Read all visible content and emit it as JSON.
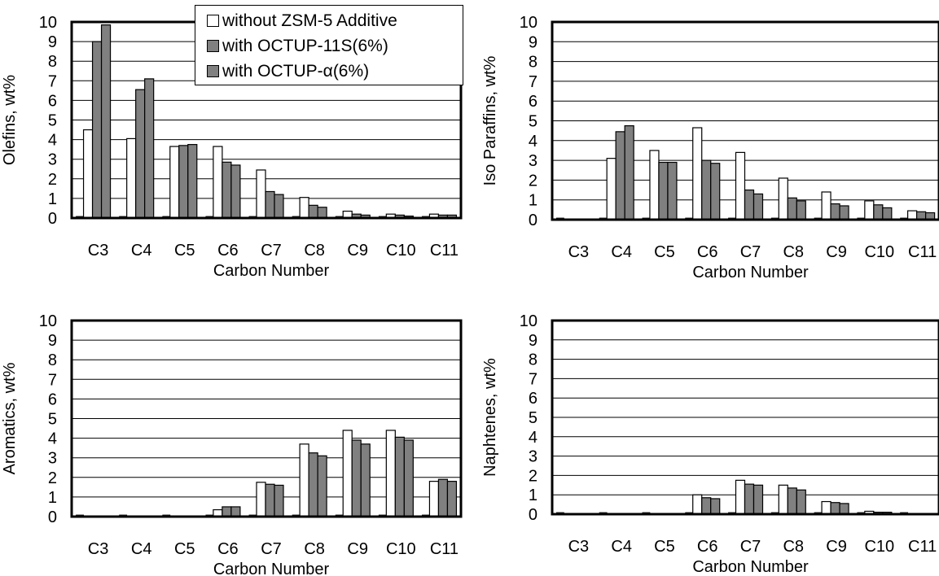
{
  "chart_data": [
    {
      "type": "bar",
      "ylabel": "Olefins, wt%",
      "xlabel": "Carbon Number",
      "ylim": [
        0,
        10
      ],
      "categories": [
        "C3",
        "C4",
        "C5",
        "C6",
        "C7",
        "C8",
        "C9",
        "C10",
        "C11"
      ],
      "series": [
        {
          "name": "without ZSM-5 Additive",
          "values": [
            4.5,
            4.05,
            3.65,
            3.65,
            2.45,
            1.05,
            0.35,
            0.2,
            0.2
          ]
        },
        {
          "name": "with OCTUP-11S(6%)",
          "values": [
            9.0,
            6.55,
            3.7,
            2.85,
            1.35,
            0.65,
            0.2,
            0.15,
            0.15
          ]
        },
        {
          "name": "with OCTUP-α(6%)",
          "values": [
            9.85,
            7.1,
            3.75,
            2.7,
            1.2,
            0.55,
            0.15,
            0.1,
            0.15
          ]
        }
      ]
    },
    {
      "type": "bar",
      "ylabel": "Iso Paraffins, wt%",
      "xlabel": "Carbon Number",
      "ylim": [
        0,
        10
      ],
      "categories": [
        "C3",
        "C4",
        "C5",
        "C6",
        "C7",
        "C8",
        "C9",
        "C10",
        "C11"
      ],
      "series": [
        {
          "name": "without ZSM-5 Additive",
          "values": [
            0.0,
            3.1,
            3.5,
            4.65,
            3.4,
            2.1,
            1.4,
            0.95,
            0.45
          ]
        },
        {
          "name": "with OCTUP-11S(6%)",
          "values": [
            0.0,
            4.45,
            2.9,
            3.0,
            1.5,
            1.1,
            0.8,
            0.75,
            0.4
          ]
        },
        {
          "name": "with OCTUP-α(6%)",
          "values": [
            0.0,
            4.75,
            2.9,
            2.85,
            1.3,
            0.95,
            0.7,
            0.6,
            0.35
          ]
        }
      ]
    },
    {
      "type": "bar",
      "ylabel": "Aromatics, wt%",
      "xlabel": "Carbon Number",
      "ylim": [
        0,
        10
      ],
      "categories": [
        "C3",
        "C4",
        "C5",
        "C6",
        "C7",
        "C8",
        "C9",
        "C10",
        "C11"
      ],
      "series": [
        {
          "name": "without ZSM-5 Additive",
          "values": [
            0.0,
            0.0,
            0.0,
            0.35,
            1.75,
            3.7,
            4.4,
            4.4,
            1.8
          ]
        },
        {
          "name": "with OCTUP-11S(6%)",
          "values": [
            0.0,
            0.0,
            0.0,
            0.5,
            1.65,
            3.25,
            3.9,
            4.05,
            1.9
          ]
        },
        {
          "name": "with OCTUP-α(6%)",
          "values": [
            0.0,
            0.0,
            0.0,
            0.5,
            1.6,
            3.1,
            3.7,
            3.9,
            1.8
          ]
        }
      ]
    },
    {
      "type": "bar",
      "ylabel": "Naphtenes, wt%",
      "xlabel": "Carbon Number",
      "ylim": [
        0,
        10
      ],
      "categories": [
        "C3",
        "C4",
        "C5",
        "C6",
        "C7",
        "C8",
        "C9",
        "C10",
        "C11"
      ],
      "series": [
        {
          "name": "without ZSM-5 Additive",
          "values": [
            0.0,
            0.0,
            0.0,
            1.0,
            1.75,
            1.5,
            0.65,
            0.15,
            0.0
          ]
        },
        {
          "name": "with OCTUP-11S(6%)",
          "values": [
            0.0,
            0.0,
            0.0,
            0.85,
            1.55,
            1.35,
            0.6,
            0.1,
            0.0
          ]
        },
        {
          "name": "with OCTUP-α(6%)",
          "values": [
            0.0,
            0.0,
            0.0,
            0.8,
            1.5,
            1.25,
            0.55,
            0.1,
            0.0
          ]
        }
      ]
    }
  ],
  "legend": {
    "items": [
      {
        "label": "without ZSM-5 Additive",
        "color": "#ffffff"
      },
      {
        "label": "with OCTUP-11S(6%)",
        "color": "#808080"
      },
      {
        "label": "with OCTUP-α(6%)",
        "color": "#808080"
      }
    ]
  },
  "colors": {
    "series": [
      "#ffffff",
      "#808080",
      "#808080"
    ],
    "axis": "#000000",
    "grid": "#000000"
  }
}
